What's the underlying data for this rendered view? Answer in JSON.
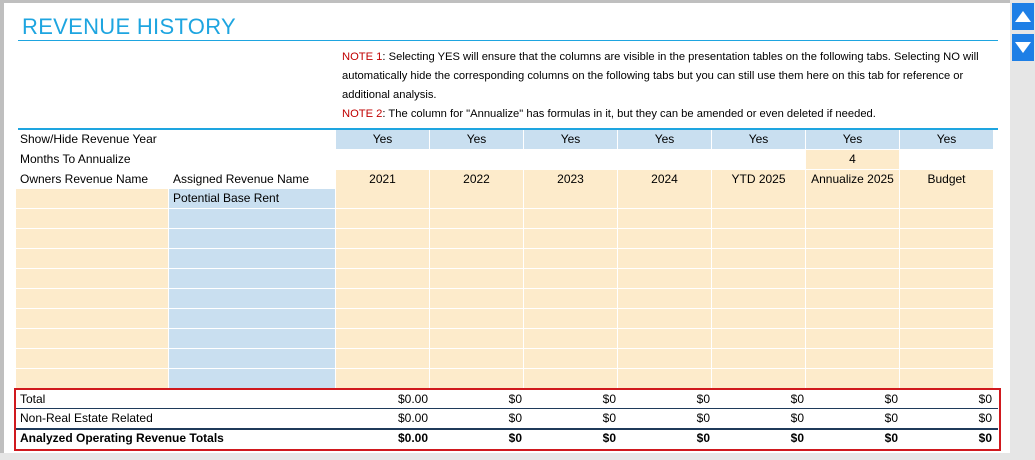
{
  "title": "REVENUE HISTORY",
  "notes": [
    {
      "tag": "NOTE 1",
      "text": ": Selecting YES will ensure that the columns are visible in the presentation tables on the following tabs. Selecting NO will automatically hide the corresponding columns on the following tabs but you can still use them here on this tab for reference or additional analysis."
    },
    {
      "tag": "NOTE 2",
      "text": ": The column for \"Annualize\" has formulas in it, but they can be amended or even deleted if needed."
    }
  ],
  "rows": {
    "show_hide_label": "Show/Hide Revenue Year",
    "show_hide_values": [
      "Yes",
      "Yes",
      "Yes",
      "Yes",
      "Yes",
      "Yes",
      "Yes"
    ],
    "months_label": "Months To Annualize",
    "months_value": "4",
    "owners_label": "Owners Revenue Name",
    "assigned_label": "Assigned Revenue Name",
    "column_headers": [
      "2021",
      "2022",
      "2023",
      "2024",
      "YTD 2025",
      "Annualize 2025",
      "Budget"
    ],
    "first_assigned": "Potential Base Rent"
  },
  "totals": [
    {
      "label": "Total",
      "values": [
        "$0.00",
        "$0",
        "$0",
        "$0",
        "$0",
        "$0",
        "$0"
      ]
    },
    {
      "label": "Non-Real Estate Related",
      "values": [
        "$0.00",
        "$0",
        "$0",
        "$0",
        "$0",
        "$0",
        "$0"
      ]
    },
    {
      "label": "Analyzed Operating Revenue Totals",
      "values": [
        "$0.00",
        "$0",
        "$0",
        "$0",
        "$0",
        "$0",
        "$0"
      ]
    }
  ],
  "scrollbar": {
    "up_icon": "arrow-up-icon",
    "down_icon": "arrow-down-icon"
  },
  "colors": {
    "accent": "#1ea5e0",
    "note": "#c00000",
    "blue_cell": "#c9dff0",
    "tan_cell": "#fdebcb",
    "highlight": "#d0191e",
    "scroll": "#1e7fe6"
  }
}
